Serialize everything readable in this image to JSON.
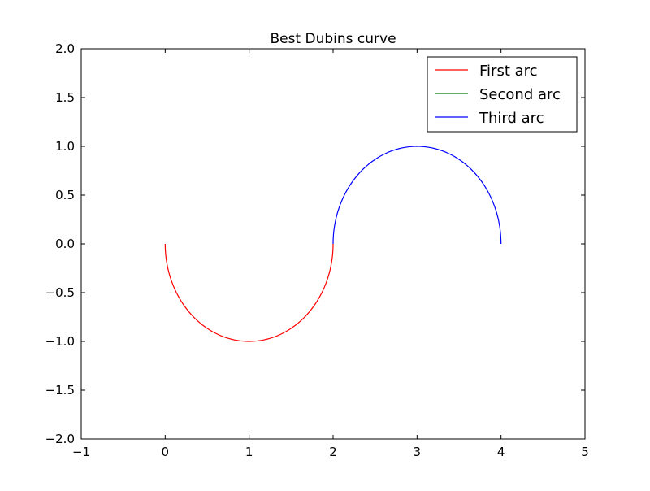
{
  "chart_data": {
    "type": "line",
    "title": "Best Dubins curve",
    "xlabel": "",
    "ylabel": "",
    "xlim": [
      -1,
      5
    ],
    "ylim": [
      -2,
      2
    ],
    "x_ticks": [
      -1,
      0,
      1,
      2,
      3,
      4,
      5
    ],
    "x_tick_labels": [
      "−1",
      "0",
      "1",
      "2",
      "3",
      "4",
      "5"
    ],
    "y_ticks": [
      -2,
      -1.5,
      -1,
      -0.5,
      0,
      0.5,
      1,
      1.5,
      2
    ],
    "y_tick_labels": [
      "−2.0",
      "−1.5",
      "−1.0",
      "−0.5",
      "0.0",
      "0.5",
      "1.0",
      "1.5",
      "2.0"
    ],
    "grid": false,
    "legend_position": "top-right",
    "series": [
      {
        "name": "First arc",
        "color": "#ff0000",
        "x": [
          0,
          0.0076,
          0.0302,
          0.067,
          0.117,
          0.1786,
          0.25,
          0.329,
          0.4132,
          0.5,
          0.5868,
          0.671,
          0.75,
          0.8214,
          0.883,
          0.933,
          0.9698,
          0.9924,
          1.0
        ],
        "y": [
          0,
          -0.1219,
          -0.2419,
          -0.3584,
          -0.4695,
          -0.5736,
          -0.6691,
          -0.7547,
          -0.829,
          -0.891,
          -0.9397,
          -0.9744,
          -0.9945,
          -1.0,
          -0.9903,
          -0.9659,
          -0.9272,
          -0.8746,
          -0.809
        ],
        "comment_unused": ""
      },
      {
        "name": "Second arc",
        "color": "#008000",
        "x": [
          2,
          2
        ],
        "y": [
          0,
          0
        ]
      },
      {
        "name": "Third arc",
        "color": "#0000ff",
        "x": [],
        "y": []
      }
    ]
  }
}
